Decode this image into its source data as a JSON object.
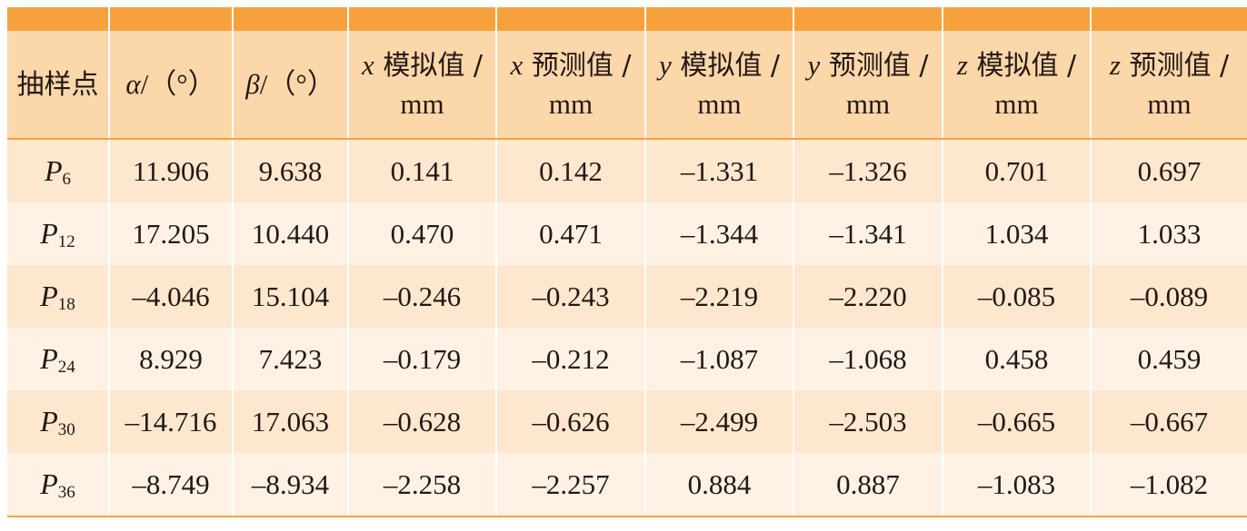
{
  "headers": [
    {
      "line1": "抽样点",
      "line2": ""
    },
    {
      "symbol": "α",
      "line1": "/（°）",
      "line2": ""
    },
    {
      "symbol": "β",
      "line1": "/（°）",
      "line2": ""
    },
    {
      "symbol": "x",
      "line1": " 模拟值 /",
      "line2": "mm"
    },
    {
      "symbol": "x",
      "line1": " 预测值 /",
      "line2": "mm"
    },
    {
      "symbol": "y",
      "line1": " 模拟值 /",
      "line2": "mm"
    },
    {
      "symbol": "y",
      "line1": " 预测值 /",
      "line2": "mm"
    },
    {
      "symbol": "z",
      "line1": " 模拟值 /",
      "line2": "mm"
    },
    {
      "symbol": "z",
      "line1": " 预测值 /",
      "line2": "mm"
    }
  ],
  "rows": [
    {
      "p": "P",
      "sub": "6",
      "cells": [
        "11.906",
        "9.638",
        "0.141",
        "0.142",
        "–1.331",
        "–1.326",
        "0.701",
        "0.697"
      ]
    },
    {
      "p": "P",
      "sub": "12",
      "cells": [
        "17.205",
        "10.440",
        "0.470",
        "0.471",
        "–1.344",
        "–1.341",
        "1.034",
        "1.033"
      ]
    },
    {
      "p": "P",
      "sub": "18",
      "cells": [
        "–4.046",
        "15.104",
        "–0.246",
        "–0.243",
        "–2.219",
        "–2.220",
        "–0.085",
        "–0.089"
      ]
    },
    {
      "p": "P",
      "sub": "24",
      "cells": [
        "8.929",
        "7.423",
        "–0.179",
        "–0.212",
        "–1.087",
        "–1.068",
        "0.458",
        "0.459"
      ]
    },
    {
      "p": "P",
      "sub": "30",
      "cells": [
        "–14.716",
        "17.063",
        "–0.628",
        "–0.626",
        "–2.499",
        "–2.503",
        "–0.665",
        "–0.667"
      ]
    },
    {
      "p": "P",
      "sub": "36",
      "cells": [
        "–8.749",
        "–8.934",
        "–2.258",
        "–2.257",
        "0.884",
        "0.887",
        "–1.083",
        "–1.082"
      ]
    }
  ],
  "colors": {
    "top_bar": "#f7a13d",
    "header_bg": "#fcd7a9",
    "row_odd": "#fde7cf",
    "row_even": "#fff2e5"
  }
}
